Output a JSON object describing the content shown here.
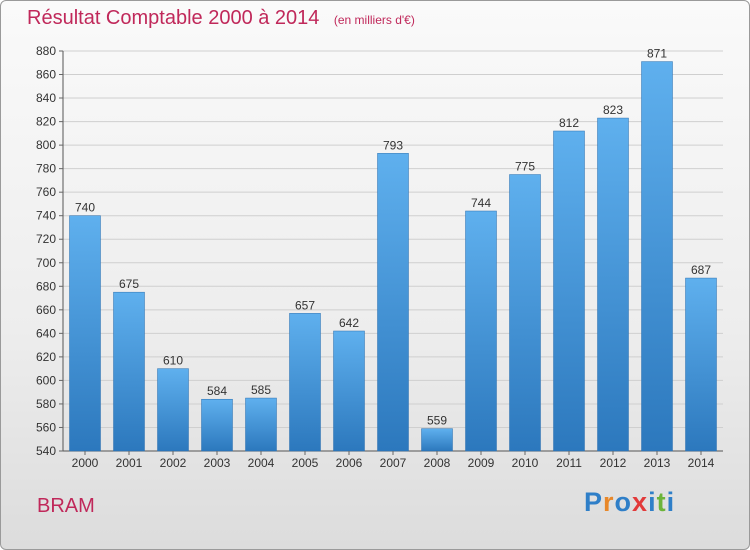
{
  "chart_data": {
    "type": "bar",
    "title": "Résultat Comptable 2000 à 2014",
    "subtitle": "(en milliers d'€)",
    "categories": [
      "2000",
      "2001",
      "2002",
      "2003",
      "2004",
      "2005",
      "2006",
      "2007",
      "2008",
      "2009",
      "2010",
      "2011",
      "2012",
      "2013",
      "2014"
    ],
    "values": [
      740,
      675,
      610,
      584,
      585,
      657,
      642,
      793,
      559,
      744,
      775,
      812,
      823,
      871,
      687
    ],
    "ylim": [
      540,
      880
    ],
    "yticks": [
      540,
      560,
      580,
      600,
      620,
      640,
      660,
      680,
      700,
      720,
      740,
      760,
      780,
      800,
      820,
      840,
      860,
      880
    ],
    "grid": true,
    "bar_color": "#3b8fd6"
  },
  "footer": {
    "commune": "BRAM",
    "logo_letters": [
      {
        "ch": "P",
        "color": "#2f7fc8"
      },
      {
        "ch": "r",
        "color": "#e8882a"
      },
      {
        "ch": "o",
        "color": "#2f7fc8"
      },
      {
        "ch": "x",
        "color": "#e23a3a"
      },
      {
        "ch": "i",
        "color": "#2f7fc8"
      },
      {
        "ch": "t",
        "color": "#6cb43a"
      },
      {
        "ch": "i",
        "color": "#2f7fc8"
      }
    ]
  }
}
